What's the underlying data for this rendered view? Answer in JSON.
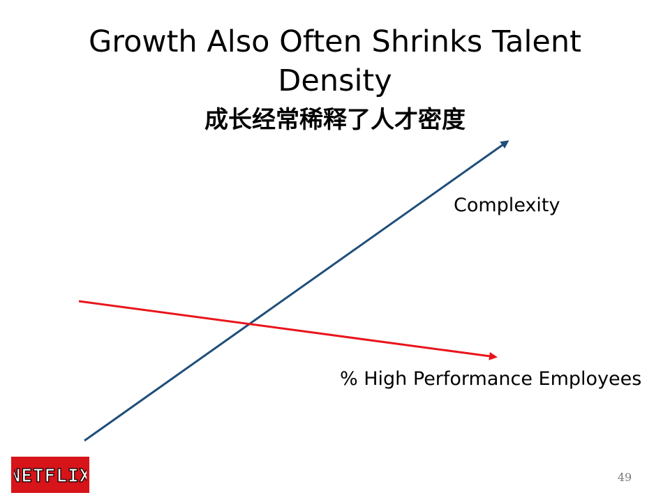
{
  "slide": {
    "title": "Growth Also Often Shrinks Talent Density",
    "subtitle": "成长经常稀释了人才密度",
    "labels": {
      "complexity": "Complexity",
      "high_performance": "% High Performance Employees"
    },
    "logo_text": "NETFLIX",
    "page_number": "49",
    "colors": {
      "complexity_arrow": "#1f4e7a",
      "performance_arrow": "#e8151b",
      "logo_background": "#d7141a",
      "page_number": "#7a7a7a"
    }
  }
}
